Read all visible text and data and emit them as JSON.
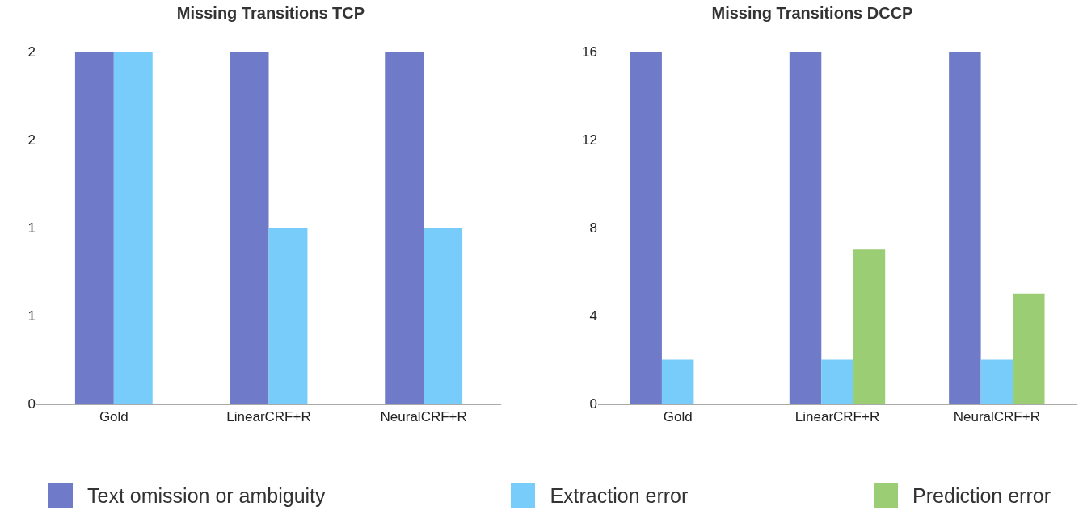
{
  "chart_data": [
    {
      "type": "bar",
      "title": "Missing Transitions TCP",
      "categories": [
        "Gold",
        "LinearCRF+R",
        "NeuralCRF+R"
      ],
      "series": [
        {
          "name": "Text omission or ambiguity",
          "color": "#6f7bc8",
          "values": [
            2,
            2,
            2
          ]
        },
        {
          "name": "Extraction error",
          "color": "#77ccfa",
          "values": [
            2,
            1,
            1
          ]
        }
      ],
      "ylim": [
        0,
        2
      ],
      "yticks": [
        0,
        {
          "value": 0.5,
          "label": "1"
        },
        1,
        {
          "value": 1.5,
          "label": "2"
        },
        2
      ],
      "grid": "y",
      "legend": "bottom"
    },
    {
      "type": "bar",
      "title": "Missing Transitions DCCP",
      "categories": [
        "Gold",
        "LinearCRF+R",
        "NeuralCRF+R"
      ],
      "series": [
        {
          "name": "Text omission or ambiguity",
          "color": "#6f7bc8",
          "values": [
            16,
            16,
            16
          ]
        },
        {
          "name": "Extraction error",
          "color": "#77ccfa",
          "values": [
            2,
            2,
            2
          ]
        },
        {
          "name": "Prediction error",
          "color": "#9bcd74",
          "values": [
            null,
            7,
            5
          ]
        }
      ],
      "ylim": [
        0,
        16
      ],
      "yticks": [
        0,
        4,
        8,
        12,
        16
      ],
      "grid": "y",
      "legend": "bottom"
    }
  ]
}
